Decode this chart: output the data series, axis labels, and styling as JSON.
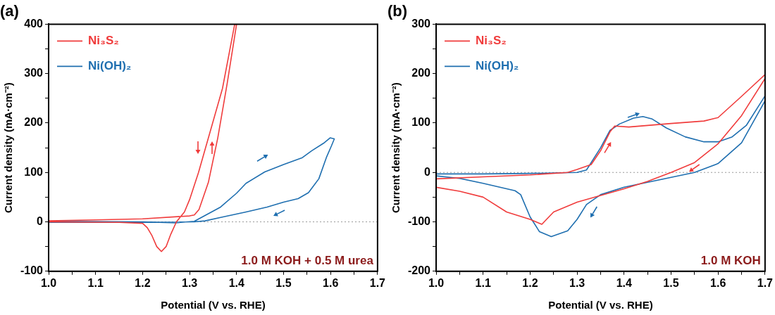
{
  "chart_data": [
    {
      "type": "line",
      "title": "(a)",
      "xlabel": "Potential (V vs. RHE)",
      "ylabel": "Current density (mA·cm⁻²)",
      "xlim": [
        1.0,
        1.7
      ],
      "ylim": [
        -100,
        400
      ],
      "xticks": [
        {
          "value": 1.0,
          "label": "1.0"
        },
        {
          "value": 1.05,
          "label": null
        },
        1.1,
        {
          "value": 1.15,
          "label": null
        },
        1.2,
        {
          "value": 1.25,
          "label": null
        },
        1.3,
        {
          "value": 1.35,
          "label": null
        },
        1.4,
        {
          "value": 1.45,
          "label": null
        },
        1.5,
        {
          "value": 1.55,
          "label": null
        },
        1.6,
        {
          "value": 1.65,
          "label": null
        },
        1.7
      ],
      "yticks": [
        -100,
        {
          "value": -50,
          "label": null
        },
        0,
        {
          "value": 50,
          "label": null
        },
        100,
        {
          "value": 150,
          "label": null
        },
        200,
        {
          "value": 250,
          "label": null
        },
        300,
        {
          "value": 350,
          "label": null
        },
        400
      ],
      "legend": "top left",
      "grid": false,
      "ref_lines": [
        {
          "axis": "y",
          "value": 0,
          "color": "#999999",
          "line_style": "dotted"
        }
      ],
      "annotations": [
        "1.0 M KOH + 0.5 M urea"
      ],
      "series": [
        {
          "name": "Ni₃S₂",
          "color": "#f03c3c",
          "x": [
            1.0,
            1.1,
            1.2,
            1.3,
            1.31,
            1.32,
            1.34,
            1.36,
            1.38,
            1.4,
            1.396,
            1.37,
            1.349,
            1.319,
            1.3,
            1.289,
            1.272,
            1.26,
            1.25,
            1.24,
            1.23,
            1.22,
            1.21,
            1.2,
            1.15,
            1.0
          ],
          "values": [
            2,
            4,
            6,
            12,
            14,
            25,
            80,
            170,
            280,
            400,
            400,
            270,
            200,
            100,
            45,
            20,
            0,
            -25,
            -50,
            -60,
            -50,
            -28,
            -12,
            -3,
            -1,
            0
          ]
        },
        {
          "name": "Ni(OH)₂",
          "color": "#1f6fb0",
          "x": [
            1.0,
            1.2,
            1.27,
            1.31,
            1.366,
            1.4,
            1.42,
            1.46,
            1.5,
            1.54,
            1.56,
            1.585,
            1.599,
            1.608,
            1.602,
            1.591,
            1.575,
            1.553,
            1.531,
            1.5,
            1.465,
            1.42,
            1.366,
            1.333,
            1.31,
            1.2,
            1.0
          ],
          "values": [
            1,
            0,
            -2,
            1,
            30,
            58,
            78,
            101,
            116,
            130,
            144,
            159,
            170,
            168,
            154,
            130,
            87,
            59,
            47,
            40,
            30,
            20,
            9,
            2,
            0,
            -1,
            -1
          ]
        }
      ]
    },
    {
      "type": "line",
      "title": "(b)",
      "xlabel": "Potential (V vs. RHE)",
      "ylabel": "Current density (mA·cm⁻²)",
      "xlim": [
        1.0,
        1.7
      ],
      "ylim": [
        -200,
        300
      ],
      "xticks": [
        {
          "value": 1.0,
          "label": "1.0"
        },
        {
          "value": 1.05,
          "label": null
        },
        1.1,
        {
          "value": 1.15,
          "label": null
        },
        1.2,
        {
          "value": 1.25,
          "label": null
        },
        1.3,
        {
          "value": 1.35,
          "label": null
        },
        1.4,
        {
          "value": 1.45,
          "label": null
        },
        1.5,
        {
          "value": 1.55,
          "label": null
        },
        1.6,
        {
          "value": 1.65,
          "label": null
        },
        1.7
      ],
      "yticks": [
        -200,
        {
          "value": -150,
          "label": null
        },
        -100,
        {
          "value": -50,
          "label": null
        },
        0,
        {
          "value": 50,
          "label": null
        },
        100,
        {
          "value": 150,
          "label": null
        },
        200,
        {
          "value": 250,
          "label": null
        },
        300
      ],
      "legend": "top left",
      "grid": false,
      "ref_lines": [
        {
          "axis": "y",
          "value": 0,
          "color": "#999999",
          "line_style": "dotted"
        }
      ],
      "annotations": [
        "1.0 M KOH"
      ],
      "series": [
        {
          "name": "Ni₃S₂",
          "color": "#f03c3c",
          "x": [
            1.0,
            1.1,
            1.2,
            1.28,
            1.3,
            1.33,
            1.35,
            1.37,
            1.38,
            1.41,
            1.5,
            1.57,
            1.6,
            1.65,
            1.7,
            1.7,
            1.65,
            1.6,
            1.55,
            1.5,
            1.45,
            1.4,
            1.3,
            1.25,
            1.225,
            1.2,
            1.15,
            1.1,
            1.05,
            1.0
          ],
          "values": [
            -13,
            -9,
            -5,
            0,
            6,
            16,
            44,
            82,
            94,
            92,
            99,
            104,
            111,
            154,
            198,
            190,
            115,
            58,
            20,
            0,
            -18,
            -33,
            -60,
            -80,
            -105,
            -95,
            -80,
            -50,
            -38,
            -30
          ]
        },
        {
          "name": "Ni(OH)₂",
          "color": "#1f6fb0",
          "x": [
            1.0,
            1.1,
            1.2,
            1.3,
            1.32,
            1.35,
            1.37,
            1.39,
            1.42,
            1.44,
            1.46,
            1.49,
            1.53,
            1.57,
            1.6,
            1.63,
            1.66,
            1.7,
            1.7,
            1.65,
            1.6,
            1.55,
            1.5,
            1.45,
            1.4,
            1.35,
            1.32,
            1.3,
            1.28,
            1.245,
            1.22,
            1.2,
            1.18,
            1.168,
            1.1,
            1.05,
            1.0
          ],
          "values": [
            -3,
            -3,
            -2,
            0,
            5,
            50,
            85,
            98,
            110,
            113,
            108,
            90,
            72,
            62,
            62,
            72,
            95,
            155,
            145,
            60,
            18,
            0,
            -10,
            -20,
            -30,
            -45,
            -65,
            -95,
            -118,
            -130,
            -120,
            -90,
            -45,
            -37,
            -22,
            -12,
            -7
          ]
        }
      ]
    }
  ]
}
